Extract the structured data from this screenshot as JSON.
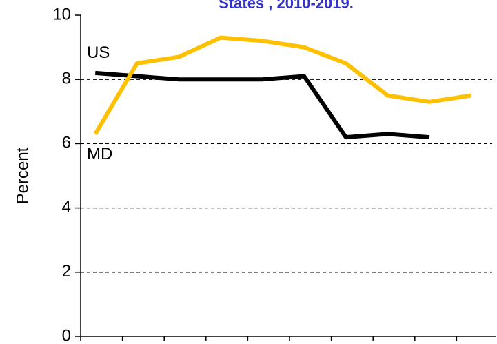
{
  "chart_data": {
    "type": "line",
    "title": "States    , 2010-2019.",
    "y_label": "Percent",
    "categories": [
      null,
      null,
      null,
      null,
      null,
      null,
      null,
      null,
      null,
      null
    ],
    "series": [
      {
        "name": "US",
        "color": "#000000",
        "values": [
          8.2,
          8.1,
          8.0,
          8.0,
          8.0,
          8.1,
          6.2,
          6.3,
          6.2,
          null
        ]
      },
      {
        "name": "MD",
        "color": "#FFC000",
        "values": [
          6.3,
          8.5,
          8.7,
          9.3,
          9.2,
          9.0,
          8.5,
          7.5,
          7.3,
          7.5
        ]
      }
    ],
    "ylim": [
      0,
      10
    ],
    "yticks": [
      0,
      2,
      4,
      6,
      8,
      10
    ],
    "grid": true
  }
}
